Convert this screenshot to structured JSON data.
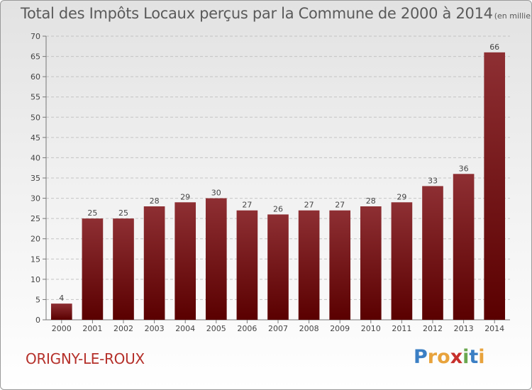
{
  "chart_data": {
    "type": "bar",
    "title": "Total des Impôts Locaux perçus par la Commune de 2000 à 2014",
    "unit_label": "(en milliers d'€)",
    "categories": [
      "2000",
      "2001",
      "2002",
      "2003",
      "2004",
      "2005",
      "2006",
      "2007",
      "2008",
      "2009",
      "2010",
      "2011",
      "2012",
      "2013",
      "2014"
    ],
    "values": [
      4,
      25,
      25,
      28,
      29,
      30,
      27,
      26,
      27,
      27,
      28,
      29,
      33,
      36,
      66
    ],
    "ylim": [
      0,
      70
    ],
    "yticks": [
      0,
      5,
      10,
      15,
      20,
      25,
      30,
      35,
      40,
      45,
      50,
      55,
      60,
      65,
      70
    ],
    "grid": true,
    "bar_color_top": "#8e2f33",
    "bar_color_bottom": "#5a0000",
    "data_labels": true
  },
  "footer": {
    "commune": "ORIGNY-LE-ROUX",
    "logo_letters": [
      "P",
      "r",
      "o",
      "x",
      "i",
      "t",
      "i"
    ],
    "logo_colors": [
      "#3b7fc4",
      "#e8a33c",
      "#e8a33c",
      "#c7302c",
      "#6aa84f",
      "#3b7fc4",
      "#e8a33c"
    ]
  }
}
